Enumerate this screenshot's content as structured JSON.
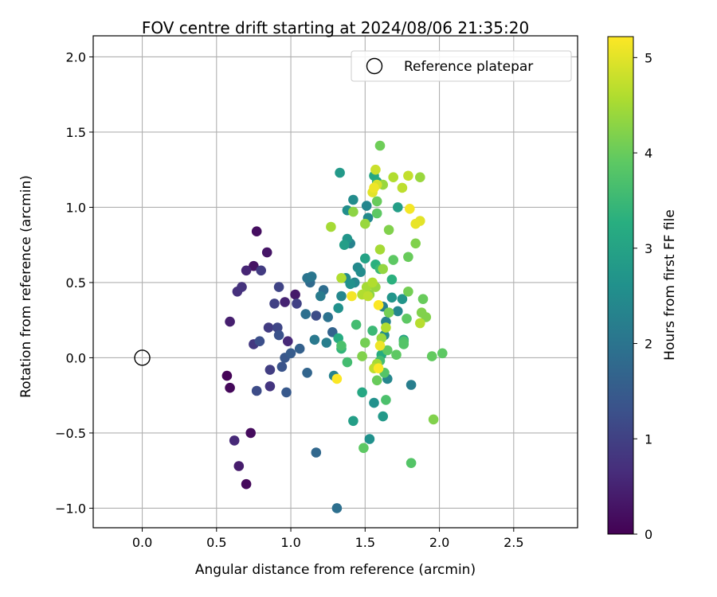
{
  "chart_data": {
    "type": "scatter",
    "title": "FOV centre drift starting at 2024/08/06 21:35:20",
    "xlabel": "Angular distance from reference (arcmin)",
    "ylabel": "Rotation from reference (arcmin)",
    "xlim": [
      -0.33,
      2.93
    ],
    "ylim": [
      -1.13,
      2.14
    ],
    "x_ticks": [
      0.0,
      0.5,
      1.0,
      1.5,
      2.0,
      2.5
    ],
    "x_tick_labels": [
      "0.0",
      "0.5",
      "1.0",
      "1.5",
      "2.0",
      "2.5"
    ],
    "y_ticks": [
      -1.0,
      -0.5,
      0.0,
      0.5,
      1.0,
      1.5,
      2.0
    ],
    "y_tick_labels": [
      "−1.0",
      "−0.5",
      "0.0",
      "0.5",
      "1.0",
      "1.5",
      "2.0"
    ],
    "grid": true,
    "legend": {
      "position": "top-right",
      "entries": [
        {
          "label": "Reference platepar",
          "marker": "open-circle"
        }
      ]
    },
    "colorbar": {
      "label": "Hours from first FF file",
      "colormap": "viridis",
      "range": [
        0,
        5.22
      ],
      "ticks": [
        0,
        1,
        2,
        3,
        4,
        5
      ],
      "tick_labels": [
        "0",
        "1",
        "2",
        "3",
        "4",
        "5"
      ]
    },
    "reference_point": {
      "x": 0.0,
      "y": 0.0
    },
    "series": [
      {
        "points": [
          [
            0.57,
            -0.12,
            0.05
          ],
          [
            0.59,
            -0.2,
            0.1
          ],
          [
            0.7,
            -0.84,
            0.12
          ],
          [
            0.73,
            -0.5,
            0.15
          ],
          [
            0.77,
            0.84,
            0.2
          ],
          [
            0.75,
            0.61,
            0.25
          ],
          [
            0.84,
            0.7,
            0.3
          ],
          [
            1.03,
            0.42,
            0.35
          ],
          [
            0.65,
            -0.72,
            0.4
          ],
          [
            0.59,
            0.24,
            0.45
          ],
          [
            0.7,
            0.58,
            0.55
          ],
          [
            0.62,
            -0.55,
            0.6
          ],
          [
            0.64,
            0.44,
            0.7
          ],
          [
            0.67,
            0.47,
            0.75
          ],
          [
            0.75,
            0.09,
            0.85
          ],
          [
            0.8,
            0.58,
            0.9
          ],
          [
            0.85,
            0.2,
            0.9
          ],
          [
            0.86,
            -0.08,
            0.95
          ],
          [
            0.89,
            0.36,
            1.0
          ],
          [
            0.92,
            0.47,
            1.05
          ],
          [
            0.91,
            0.2,
            1.1
          ],
          [
            0.96,
            0.37,
            0.5
          ],
          [
            0.98,
            0.11,
            0.6
          ],
          [
            0.86,
            -0.19,
            0.8
          ],
          [
            0.77,
            -0.22,
            1.2
          ],
          [
            0.79,
            0.11,
            1.25
          ],
          [
            0.92,
            0.15,
            1.3
          ],
          [
            0.94,
            -0.06,
            1.35
          ],
          [
            0.96,
            0.0,
            1.4
          ],
          [
            0.97,
            -0.23,
            1.45
          ],
          [
            1.0,
            0.03,
            1.5
          ],
          [
            1.04,
            0.36,
            1.0
          ],
          [
            1.06,
            0.06,
            1.6
          ],
          [
            1.11,
            -0.1,
            1.7
          ],
          [
            1.13,
            0.5,
            1.8
          ],
          [
            1.17,
            0.28,
            1.2
          ],
          [
            1.17,
            -0.63,
            1.75
          ],
          [
            1.1,
            0.29,
            1.9
          ],
          [
            1.11,
            0.53,
            2.0
          ],
          [
            1.14,
            0.54,
            2.05
          ],
          [
            1.16,
            0.12,
            2.1
          ],
          [
            1.2,
            0.41,
            2.15
          ],
          [
            1.22,
            0.45,
            1.85
          ],
          [
            1.24,
            0.1,
            2.2
          ],
          [
            1.25,
            0.27,
            1.95
          ],
          [
            1.28,
            0.17,
            1.65
          ],
          [
            1.29,
            -0.12,
            2.3
          ],
          [
            1.31,
            -1.0,
            1.9
          ],
          [
            1.32,
            0.33,
            2.6
          ],
          [
            1.34,
            0.41,
            2.4
          ],
          [
            1.37,
            0.53,
            2.5
          ],
          [
            1.4,
            0.49,
            2.6
          ],
          [
            1.33,
            1.23,
            2.8
          ],
          [
            1.42,
            1.05,
            2.5
          ],
          [
            1.38,
            0.98,
            2.55
          ],
          [
            1.38,
            0.79,
            2.7
          ],
          [
            1.36,
            0.75,
            2.9
          ],
          [
            1.4,
            0.76,
            2.3
          ],
          [
            1.43,
            0.5,
            2.4
          ],
          [
            1.45,
            0.6,
            2.45
          ],
          [
            1.47,
            0.57,
            2.5
          ],
          [
            1.5,
            0.66,
            3.0
          ],
          [
            1.51,
            1.01,
            2.35
          ],
          [
            1.52,
            0.93,
            2.45
          ],
          [
            1.53,
            -0.54,
            2.6
          ],
          [
            1.56,
            1.21,
            3.1
          ],
          [
            1.58,
            1.17,
            3.15
          ],
          [
            1.57,
            0.62,
            3.3
          ],
          [
            1.6,
            0.59,
            3.5
          ],
          [
            1.62,
            0.34,
            2.2
          ],
          [
            1.64,
            0.24,
            2.3
          ],
          [
            1.63,
            0.15,
            2.5
          ],
          [
            1.65,
            -0.14,
            2.4
          ],
          [
            1.62,
            -0.39,
            2.8
          ],
          [
            1.56,
            -0.3,
            2.6
          ],
          [
            1.68,
            0.4,
            2.7
          ],
          [
            1.72,
            1.0,
            2.9
          ],
          [
            1.75,
            0.39,
            2.7
          ],
          [
            1.76,
            0.12,
            3.0
          ],
          [
            1.72,
            0.31,
            2.4
          ],
          [
            1.81,
            -0.18,
            2.2
          ],
          [
            1.68,
            0.52,
            3.3
          ],
          [
            1.55,
            0.18,
            3.5
          ],
          [
            1.44,
            0.22,
            3.6
          ],
          [
            1.34,
            0.08,
            3.7
          ],
          [
            1.34,
            0.06,
            3.4
          ],
          [
            1.32,
            0.13,
            3.2
          ],
          [
            1.38,
            -0.03,
            3.6
          ],
          [
            1.42,
            -0.42,
            2.9
          ],
          [
            1.48,
            -0.23,
            3.1
          ],
          [
            1.6,
            -0.02,
            3.6
          ],
          [
            1.61,
            0.02,
            3.2
          ],
          [
            1.63,
            -0.1,
            3.8
          ],
          [
            1.65,
            0.05,
            3.9
          ],
          [
            1.66,
            0.3,
            4.1
          ],
          [
            1.66,
            0.85,
            4.2
          ],
          [
            1.69,
            0.65,
            3.9
          ],
          [
            1.76,
            0.09,
            3.8
          ],
          [
            1.71,
            0.02,
            3.9
          ],
          [
            1.76,
            0.11,
            3.7
          ],
          [
            1.78,
            0.26,
            3.9
          ],
          [
            1.79,
            0.44,
            4.1
          ],
          [
            1.79,
            0.67,
            4.0
          ],
          [
            1.84,
            0.76,
            4.2
          ],
          [
            1.88,
            0.3,
            4.2
          ],
          [
            1.89,
            0.39,
            4.0
          ],
          [
            1.91,
            0.27,
            4.2
          ],
          [
            1.95,
            0.01,
            3.95
          ],
          [
            2.02,
            0.03,
            3.9
          ],
          [
            1.96,
            -0.41,
            4.2
          ],
          [
            1.81,
            -0.7,
            3.8
          ],
          [
            1.49,
            -0.6,
            3.9
          ],
          [
            1.64,
            -0.28,
            3.7
          ],
          [
            1.58,
            -0.15,
            4.0
          ],
          [
            1.5,
            0.1,
            4.1
          ],
          [
            1.6,
            1.41,
            4.05
          ],
          [
            1.58,
            1.04,
            4.0
          ],
          [
            1.58,
            0.96,
            3.9
          ],
          [
            1.42,
            0.97,
            4.3
          ],
          [
            1.5,
            0.89,
            4.4
          ],
          [
            1.27,
            0.87,
            4.5
          ],
          [
            1.34,
            0.53,
            4.6
          ],
          [
            1.6,
            0.72,
            4.5
          ],
          [
            1.62,
            0.59,
            4.35
          ],
          [
            1.55,
            0.5,
            4.6
          ],
          [
            1.51,
            0.47,
            4.5
          ],
          [
            1.52,
            0.41,
            4.7
          ],
          [
            1.57,
            0.47,
            4.4
          ],
          [
            1.53,
            0.42,
            4.3
          ],
          [
            1.48,
            0.42,
            4.6
          ],
          [
            1.48,
            0.01,
            4.2
          ],
          [
            1.64,
            0.2,
            4.6
          ],
          [
            1.61,
            0.13,
            4.4
          ],
          [
            1.58,
            -0.04,
            4.5
          ],
          [
            1.56,
            -0.07,
            4.7
          ],
          [
            1.87,
            0.23,
            4.65
          ],
          [
            1.62,
            1.15,
            4.4
          ],
          [
            1.69,
            1.2,
            4.6
          ],
          [
            1.75,
            1.13,
            4.7
          ],
          [
            1.79,
            1.21,
            4.75
          ],
          [
            1.87,
            1.2,
            4.4
          ],
          [
            1.57,
            1.25,
            4.8
          ],
          [
            1.58,
            1.15,
            4.9
          ],
          [
            1.55,
            1.1,
            5.0
          ],
          [
            1.56,
            1.13,
            5.1
          ],
          [
            1.84,
            0.89,
            5.05
          ],
          [
            1.87,
            0.91,
            5.0
          ],
          [
            1.8,
            0.99,
            5.15
          ],
          [
            1.59,
            0.35,
            5.2
          ],
          [
            1.41,
            0.41,
            5.15
          ],
          [
            1.6,
            0.08,
            5.1
          ],
          [
            1.59,
            -0.07,
            5.2
          ],
          [
            1.31,
            -0.14,
            5.2
          ]
        ]
      }
    ]
  }
}
